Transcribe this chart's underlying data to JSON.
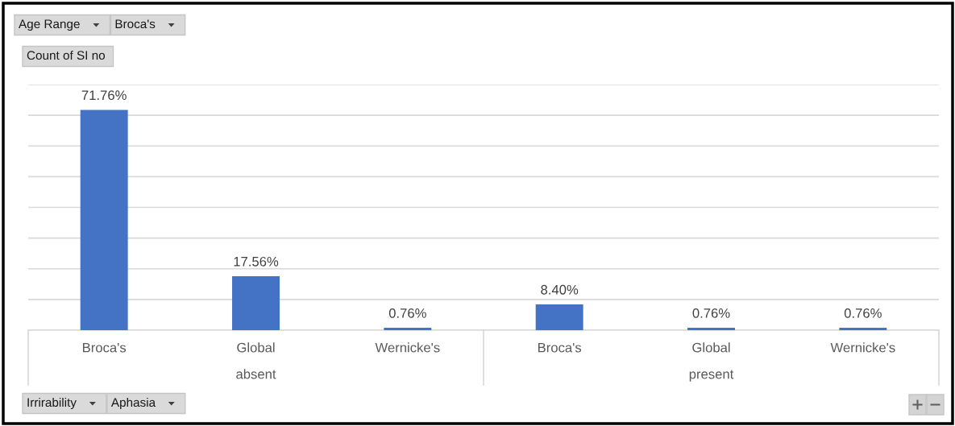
{
  "chart_data": {
    "type": "bar",
    "categories": [
      "Broca's",
      "Global",
      "Wernicke's",
      "Broca's",
      "Global",
      "Wernicke's"
    ],
    "values": [
      71.76,
      17.56,
      0.76,
      8.4,
      0.76,
      0.76
    ],
    "value_labels": [
      "71.76%",
      "17.56%",
      "0.76%",
      "8.40%",
      "0.76%",
      "0.76%"
    ],
    "color": "#4472c4",
    "ylim": [
      0,
      80
    ],
    "yticks": [
      {
        "value": 0,
        "label": null
      },
      {
        "value": 10,
        "label": null
      },
      {
        "value": 20,
        "label": null
      },
      {
        "value": 30,
        "label": null
      },
      {
        "value": 40,
        "label": null
      },
      {
        "value": 50,
        "label": null
      },
      {
        "value": 60,
        "label": null
      },
      {
        "value": 70,
        "label": null
      },
      {
        "value": 80,
        "label": null
      }
    ],
    "grid": "y",
    "tick_labels": "x",
    "annotations": [
      "Age Range",
      "Broca's",
      "Count of SI no",
      "absent",
      "present",
      "Irrirability",
      "Aphasia"
    ]
  }
}
